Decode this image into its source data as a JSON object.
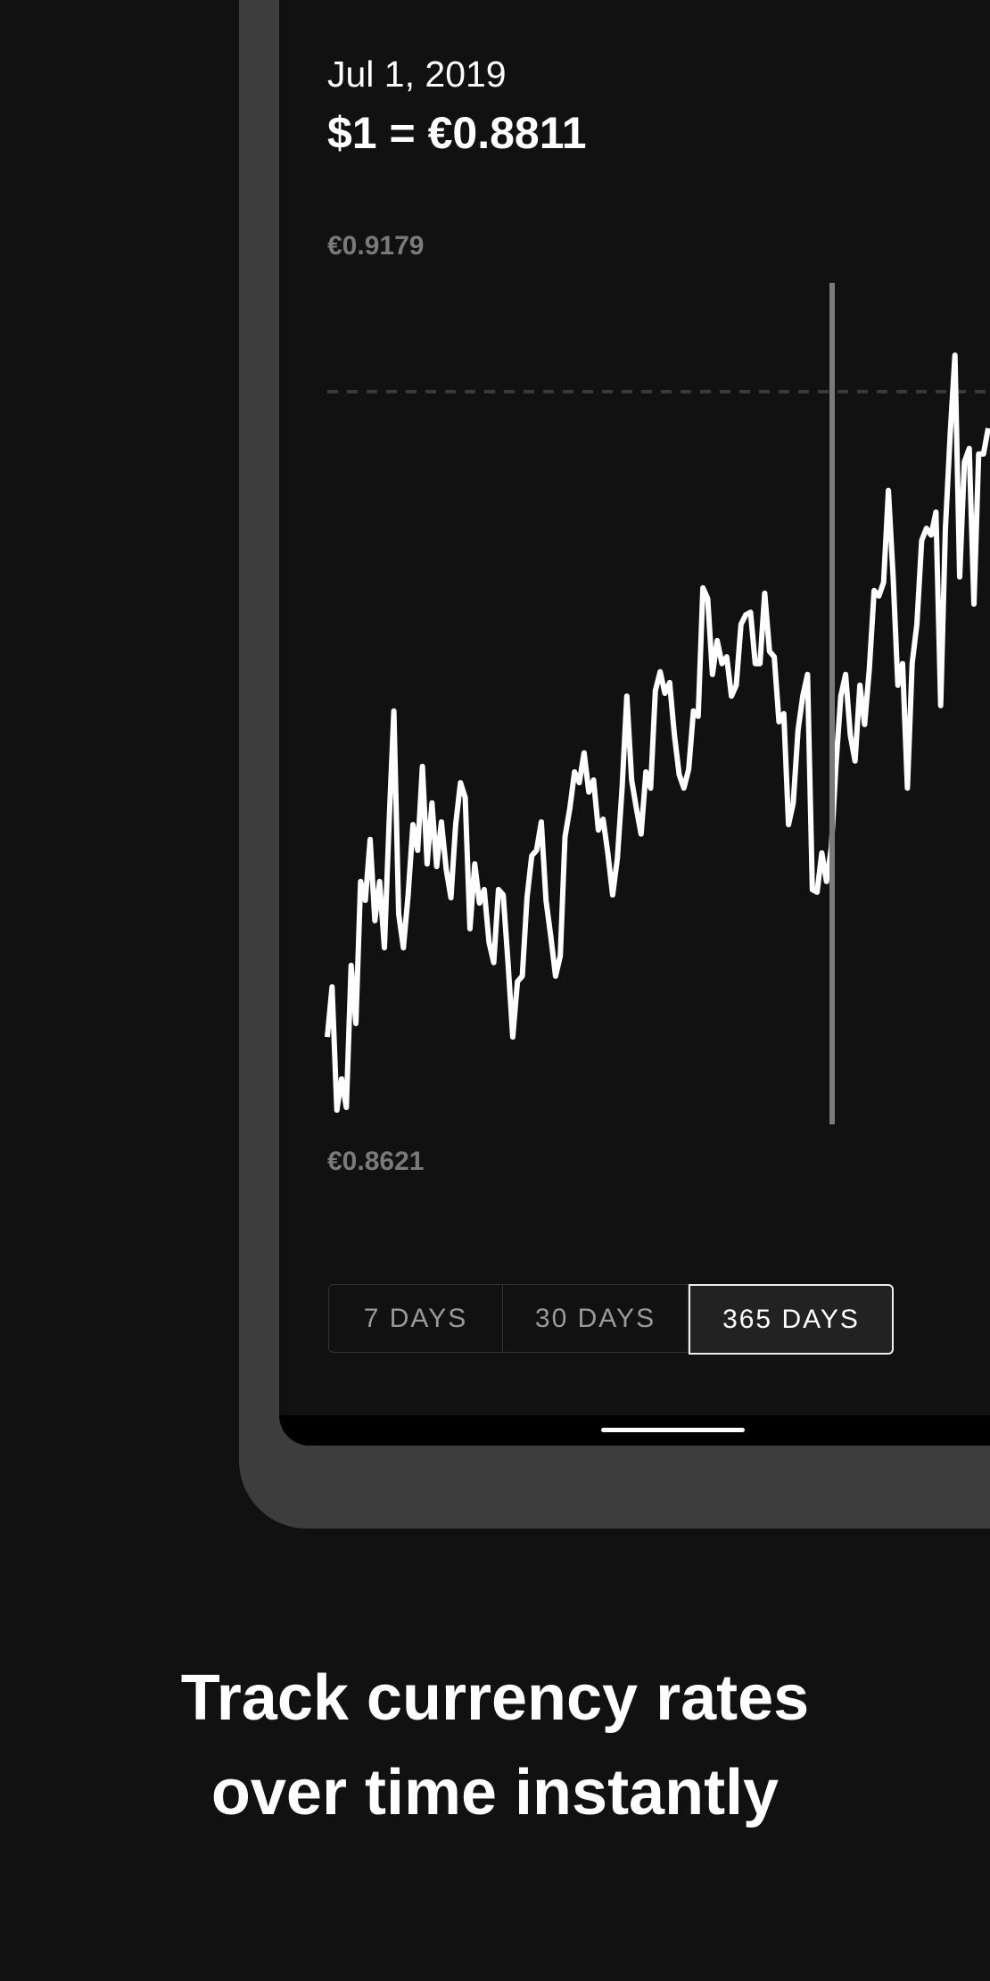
{
  "header": {
    "date": "Jul 1, 2019",
    "rate": "$1 = €0.8811"
  },
  "range_buttons": [
    {
      "label": "7 DAYS",
      "selected": false
    },
    {
      "label": "30 DAYS",
      "selected": false
    },
    {
      "label": "365 DAYS",
      "selected": true
    }
  ],
  "caption": {
    "line1": "Track currency rates",
    "line2": "over time instantly"
  },
  "colors": {
    "background": "#111111",
    "frame": "#3d3d3d",
    "line": "#ffffff",
    "cursor": "#7a7a7a",
    "label": "#7a7a7a"
  },
  "chart_data": {
    "type": "line",
    "y_max_label": "€0.9179",
    "y_min_label": "€0.8621",
    "ylim": [
      0.8621,
      0.9179
    ],
    "reference_line": 0.9152,
    "selected_value": 0.8811,
    "grid": false,
    "values": [
      0.8675,
      0.8712,
      0.8621,
      0.8644,
      0.8623,
      0.8728,
      0.8685,
      0.879,
      0.8776,
      0.8821,
      0.8761,
      0.879,
      0.8741,
      0.8834,
      0.8916,
      0.8766,
      0.8741,
      0.878,
      0.8832,
      0.8813,
      0.8875,
      0.8803,
      0.8848,
      0.8801,
      0.8834,
      0.8799,
      0.8778,
      0.8832,
      0.8863,
      0.8852,
      0.8755,
      0.8803,
      0.8774,
      0.8784,
      0.8745,
      0.873,
      0.8784,
      0.878,
      0.873,
      0.8675,
      0.8716,
      0.872,
      0.8778,
      0.8809,
      0.8813,
      0.8834,
      0.8776,
      0.8749,
      0.872,
      0.8735,
      0.8823,
      0.8844,
      0.8871,
      0.8863,
      0.8885,
      0.8856,
      0.8865,
      0.8828,
      0.8836,
      0.8811,
      0.878,
      0.8807,
      0.8859,
      0.8927,
      0.8865,
      0.8844,
      0.8825,
      0.8871,
      0.8859,
      0.8931,
      0.8945,
      0.8929,
      0.8937,
      0.8898,
      0.8869,
      0.8859,
      0.8873,
      0.8916,
      0.8912,
      0.9007,
      0.8999,
      0.8943,
      0.8968,
      0.8951,
      0.8956,
      0.8927,
      0.8935,
      0.898,
      0.8987,
      0.8989,
      0.8951,
      0.8951,
      0.9003,
      0.896,
      0.8956,
      0.8908,
      0.8914,
      0.8832,
      0.8848,
      0.8902,
      0.8927,
      0.8943,
      0.8784,
      0.8782,
      0.8811,
      0.879,
      0.8815,
      0.8877,
      0.8927,
      0.8943,
      0.8898,
      0.8879,
      0.8935,
      0.8906,
      0.8947,
      0.9005,
      0.9001,
      0.9011,
      0.9079,
      0.9015,
      0.8935,
      0.8951,
      0.8859,
      0.8951,
      0.898,
      0.9042,
      0.9051,
      0.9046,
      0.9063,
      0.892,
      0.9051,
      0.9121,
      0.9179,
      0.9015,
      0.91,
      0.911,
      0.8995,
      0.9106,
      0.9106,
      0.9125
    ]
  }
}
